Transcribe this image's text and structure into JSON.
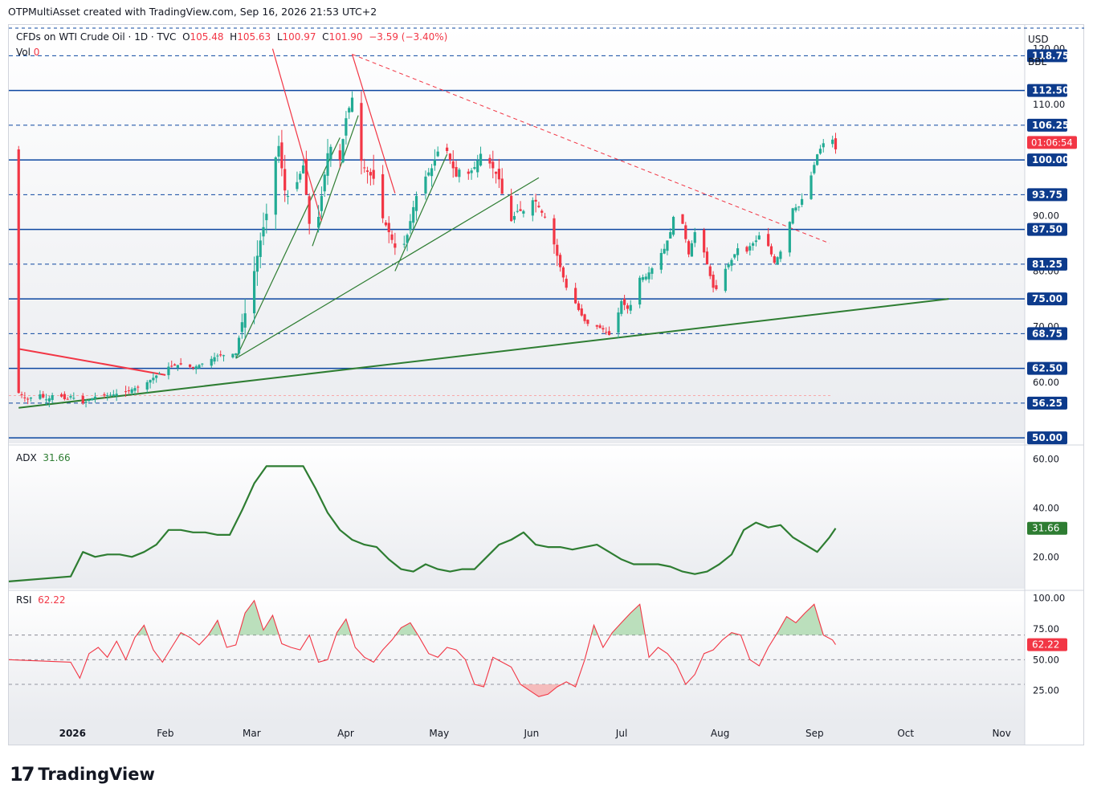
{
  "credit": "OTPMultiAsset created with TradingView.com, Sep 16, 2026 21:53 UTC+2",
  "legend": {
    "symbol": "CFDs on WTI Crude Oil · 1D · TVC",
    "o_label": "O",
    "o": "105.48",
    "h_label": "H",
    "h": "105.63",
    "l_label": "L",
    "l": "100.97",
    "c_label": "C",
    "c": "101.90",
    "change": "−3.59 (−3.40%)",
    "vol_label": "Vol",
    "vol": "0"
  },
  "currency": "USD",
  "unit": "BBL",
  "brand": {
    "name": "TradingView",
    "logo": "17"
  },
  "colors": {
    "up": "#22ab94",
    "down": "#f23645",
    "level": "#0d47a1",
    "trend_green": "#2e7d32",
    "trend_red": "#f23645",
    "adx": "#2e7d32",
    "rsi": "#f23645",
    "badge_blue": "#0d3b8c"
  },
  "chart_data": [
    {
      "type": "candlestick",
      "title": "CFDs on WTI Crude Oil · 1D · TVC",
      "ylim": [
        49,
        124
      ],
      "price_ticks": [
        "120.00",
        "110.00",
        "90.00",
        "80.00",
        "70.00",
        "60.00"
      ],
      "level_badges": [
        "118.75",
        "112.50",
        "106.25",
        "100.00",
        "93.75",
        "87.50",
        "81.25",
        "75.00",
        "68.75",
        "62.50",
        "56.25",
        "50.00"
      ],
      "last_price_badge": "01:06:54",
      "x_labels": [
        "2026",
        "Feb",
        "Mar",
        "Apr",
        "May",
        "Jun",
        "Jul",
        "Aug",
        "Sep",
        "Oct",
        "Nov"
      ],
      "x_label_days": [
        0,
        31,
        59,
        90,
        120,
        151,
        181,
        212,
        243,
        273,
        304
      ],
      "close_anchors": [
        [
          0,
          57.5
        ],
        [
          4,
          56.2
        ],
        [
          8,
          57.4
        ],
        [
          14,
          57.8
        ],
        [
          18,
          58.3
        ],
        [
          24,
          59.6
        ],
        [
          28,
          61.2
        ],
        [
          32,
          62.8
        ],
        [
          36,
          63.2
        ],
        [
          40,
          62.6
        ],
        [
          44,
          63.6
        ],
        [
          48,
          64.8
        ],
        [
          51,
          64.9
        ],
        [
          54,
          65.2
        ],
        [
          56,
          70.8
        ],
        [
          58,
          74.0
        ],
        [
          60,
          80.0
        ],
        [
          62,
          85.5
        ],
        [
          64,
          90.3
        ],
        [
          66,
          98.4
        ],
        [
          68,
          102.5
        ],
        [
          70,
          94.5
        ],
        [
          72,
          92.5
        ],
        [
          74,
          96.0
        ],
        [
          76,
          99.0
        ],
        [
          78,
          88.5
        ],
        [
          80,
          86.0
        ],
        [
          82,
          93.5
        ],
        [
          84,
          101.2
        ],
        [
          86,
          103.5
        ],
        [
          88,
          100.0
        ],
        [
          90,
          107.5
        ],
        [
          92,
          111.2
        ],
        [
          94,
          101.2
        ],
        [
          96,
          98.5
        ],
        [
          98,
          97.2
        ],
        [
          100,
          96.0
        ],
        [
          102,
          89.5
        ],
        [
          104,
          87.0
        ],
        [
          106,
          84.2
        ],
        [
          108,
          83.3
        ],
        [
          110,
          86.5
        ],
        [
          112,
          91.5
        ],
        [
          114,
          95.5
        ],
        [
          116,
          97.0
        ],
        [
          118,
          98.5
        ],
        [
          120,
          101.5
        ],
        [
          122,
          103.2
        ],
        [
          124,
          100.0
        ],
        [
          126,
          97.0
        ],
        [
          128,
          99.5
        ],
        [
          130,
          97.5
        ],
        [
          132,
          98.7
        ],
        [
          134,
          101.1
        ],
        [
          136,
          100.2
        ],
        [
          138,
          98.5
        ],
        [
          140,
          96.5
        ],
        [
          142,
          91.3
        ],
        [
          144,
          89.0
        ],
        [
          146,
          90.8
        ],
        [
          148,
          90.8
        ],
        [
          150,
          93.0
        ],
        [
          152,
          92.5
        ],
        [
          154,
          90.5
        ],
        [
          156,
          88.8
        ],
        [
          158,
          84.8
        ],
        [
          160,
          80.7
        ],
        [
          162,
          77.0
        ],
        [
          164,
          75.4
        ],
        [
          166,
          73.0
        ],
        [
          168,
          71.0
        ],
        [
          170,
          70.0
        ],
        [
          172,
          70.0
        ],
        [
          174,
          69.5
        ],
        [
          176,
          68.5
        ],
        [
          178,
          70.5
        ],
        [
          180,
          74.6
        ],
        [
          182,
          73.2
        ],
        [
          184,
          74.6
        ],
        [
          186,
          78.8
        ],
        [
          188,
          79.0
        ],
        [
          190,
          80.5
        ],
        [
          192,
          82.5
        ],
        [
          194,
          84.0
        ],
        [
          196,
          87.0
        ],
        [
          198,
          92.5
        ],
        [
          200,
          88.5
        ],
        [
          202,
          83.0
        ],
        [
          204,
          87.0
        ],
        [
          206,
          85.5
        ],
        [
          208,
          81.2
        ],
        [
          210,
          77.0
        ],
        [
          212,
          76.5
        ],
        [
          214,
          80.4
        ],
        [
          216,
          82.0
        ],
        [
          218,
          84.1
        ],
        [
          220,
          82.5
        ],
        [
          222,
          84.5
        ],
        [
          224,
          85.5
        ],
        [
          226,
          87.3
        ],
        [
          228,
          84.5
        ],
        [
          230,
          81.5
        ],
        [
          232,
          83.5
        ],
        [
          234,
          86.4
        ],
        [
          236,
          91.3
        ],
        [
          238,
          91.6
        ],
        [
          240,
          94.3
        ],
        [
          242,
          97.2
        ],
        [
          244,
          101.0
        ],
        [
          246,
          103.0
        ],
        [
          248,
          105.4
        ],
        [
          250,
          101.9
        ]
      ]
    },
    {
      "type": "line",
      "title": "ADX",
      "current_value": "31.66",
      "ylim": [
        7,
        65
      ],
      "y_ticks": [
        "60.00",
        "40.00",
        "20.00"
      ],
      "x": [
        0,
        4,
        8,
        12,
        16,
        20,
        24,
        28,
        32,
        36,
        40,
        44,
        48,
        52,
        56,
        60,
        64,
        68,
        72,
        76,
        80,
        84,
        88,
        92,
        96,
        100,
        104,
        108,
        112,
        116,
        120,
        124,
        128,
        132,
        136,
        140,
        144,
        148,
        152,
        156,
        160,
        164,
        168,
        172,
        176,
        180,
        184,
        188,
        192,
        196,
        200,
        204,
        208,
        212,
        216,
        220,
        224,
        228,
        232,
        236,
        240,
        244,
        248,
        250
      ],
      "y": [
        12,
        22,
        20,
        21,
        21,
        20,
        22,
        25,
        31,
        31,
        30,
        30,
        29,
        29,
        39,
        50,
        57,
        57,
        57,
        57,
        48,
        38,
        31,
        27,
        25,
        24,
        19,
        15,
        14,
        17,
        15,
        14,
        15,
        15,
        20,
        25,
        27,
        30,
        25,
        24,
        24,
        23,
        24,
        25,
        22,
        19,
        17,
        17,
        17,
        16,
        14,
        13,
        14,
        17,
        21,
        31,
        34,
        32,
        33,
        28,
        25,
        22,
        28,
        31.66
      ]
    },
    {
      "type": "line",
      "title": "RSI",
      "current_value": "62.22",
      "ylim": [
        0,
        105
      ],
      "y_ticks": [
        "100.00",
        "75.00",
        "50.00",
        "25.00"
      ],
      "bands": [
        70,
        50,
        30
      ],
      "x": [
        0,
        3,
        6,
        9,
        12,
        15,
        18,
        21,
        24,
        27,
        30,
        33,
        36,
        39,
        42,
        45,
        48,
        51,
        54,
        57,
        60,
        63,
        66,
        69,
        72,
        75,
        78,
        81,
        84,
        87,
        90,
        93,
        96,
        99,
        102,
        105,
        108,
        111,
        114,
        117,
        120,
        123,
        126,
        129,
        132,
        135,
        138,
        141,
        144,
        147,
        150,
        153,
        156,
        159,
        162,
        165,
        168,
        171,
        174,
        177,
        180,
        183,
        186,
        189,
        192,
        195,
        198,
        201,
        204,
        207,
        210,
        213,
        216,
        219,
        222,
        225,
        228,
        231,
        234,
        237,
        240,
        243,
        246,
        249,
        250
      ],
      "y": [
        48,
        35,
        55,
        60,
        52,
        65,
        50,
        68,
        78,
        58,
        48,
        60,
        72,
        68,
        62,
        70,
        82,
        60,
        62,
        88,
        98,
        74,
        86,
        63,
        60,
        58,
        70,
        48,
        50,
        72,
        83,
        60,
        52,
        48,
        58,
        66,
        76,
        80,
        68,
        55,
        52,
        60,
        58,
        50,
        30,
        28,
        52,
        48,
        44,
        30,
        25,
        20,
        22,
        28,
        32,
        28,
        50,
        78,
        60,
        72,
        80,
        88,
        95,
        52,
        60,
        55,
        46,
        30,
        38,
        55,
        58,
        66,
        72,
        70,
        50,
        45,
        60,
        72,
        85,
        80,
        88,
        95,
        70,
        66,
        62.22
      ]
    }
  ]
}
